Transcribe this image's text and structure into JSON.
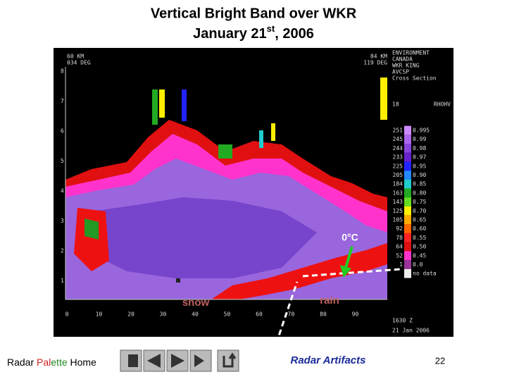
{
  "slide": {
    "title_line1": "Vertical Bright Band over WKR",
    "title_line2": {
      "main": "January 21",
      "sup": "st",
      "tail": ", 2006"
    },
    "radar_image": {
      "left_header": [
        "60 KM",
        "034 DEG"
      ],
      "right_header": [
        "84 KM",
        "119 DEG"
      ],
      "station": [
        "ENVIRONMENT",
        "CANADA",
        "WKR KING",
        "AVCSP",
        "Cross Section"
      ],
      "product_number": "18",
      "product": "RHOHV",
      "y_ticks": [
        "8",
        "7",
        "6",
        "5",
        "4",
        "3",
        "2",
        "1"
      ],
      "x_ticks": [
        "0",
        "10",
        "20",
        "30",
        "40",
        "50",
        "60",
        "70",
        "80",
        "90"
      ],
      "scale_left": [
        "251",
        "245",
        "244",
        "233",
        "225",
        "205",
        "184",
        "163",
        "143",
        "125",
        "105",
        "92",
        "78",
        "64",
        "52",
        "1"
      ],
      "scale_right": [
        "0.995",
        "0.99",
        "0.98",
        "0.97",
        "0.95",
        "0.90",
        "0.85",
        "0.80",
        "0.75",
        "0.70",
        "0.65",
        "0.60",
        "0.55",
        "0.50",
        "0.45",
        "0.0"
      ],
      "no_data": "no data",
      "time": "1630 Z",
      "date": "21 Jan 2006"
    },
    "annotations": {
      "freezing": "0°C",
      "snow": "snow",
      "rain": "rain"
    },
    "footer": {
      "home": [
        "Radar ",
        "Pal",
        "ette",
        " Home"
      ],
      "link": "Radar Artifacts",
      "page": "22"
    }
  }
}
